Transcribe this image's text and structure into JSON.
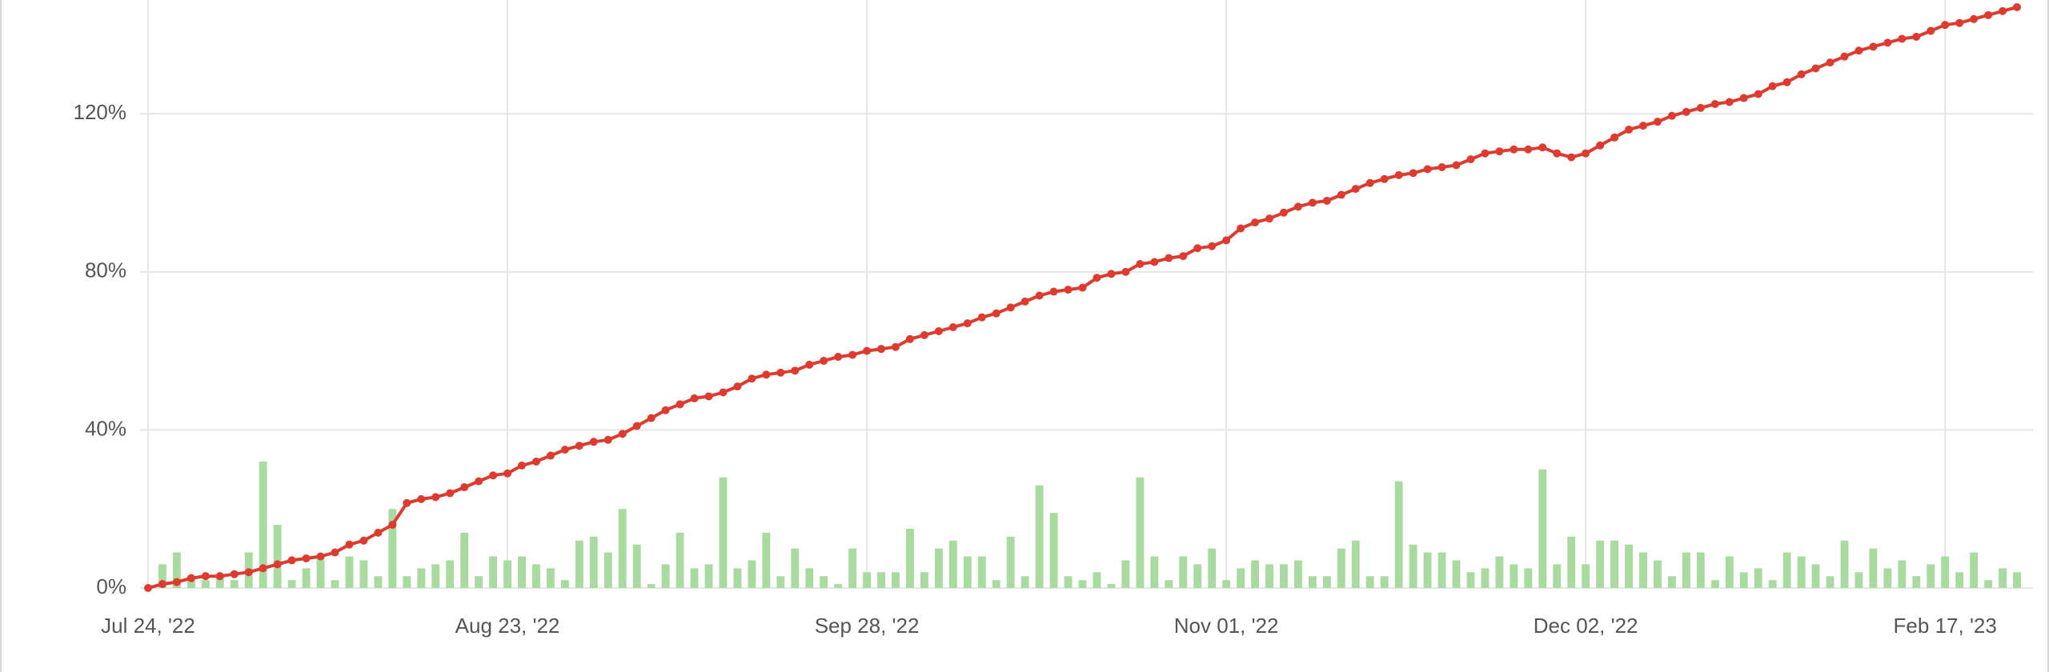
{
  "chart_data": {
    "type": "line",
    "categories": [
      "Jul 24, '22",
      null,
      null,
      null,
      null,
      null,
      null,
      null,
      null,
      null,
      null,
      null,
      null,
      null,
      null,
      null,
      null,
      null,
      null,
      null,
      null,
      null,
      null,
      null,
      null,
      "Aug 23, '22",
      null,
      null,
      null,
      null,
      null,
      null,
      null,
      null,
      null,
      null,
      null,
      null,
      null,
      null,
      null,
      null,
      null,
      null,
      null,
      null,
      null,
      null,
      null,
      null,
      "Sep 28, '22",
      null,
      null,
      null,
      null,
      null,
      null,
      null,
      null,
      null,
      null,
      null,
      null,
      null,
      null,
      null,
      null,
      null,
      null,
      null,
      null,
      null,
      null,
      null,
      null,
      "Nov 01, '22",
      null,
      null,
      null,
      null,
      null,
      null,
      null,
      null,
      null,
      null,
      null,
      null,
      null,
      null,
      null,
      null,
      null,
      null,
      null,
      null,
      null,
      null,
      null,
      null,
      "Dec 02, '22",
      null,
      null,
      null,
      null,
      null,
      null,
      null,
      null,
      null,
      null,
      null,
      null,
      null,
      null,
      null,
      null,
      null,
      null,
      null,
      null,
      null,
      null,
      null,
      null,
      "Feb 17, '23",
      null,
      null,
      null,
      null,
      null
    ],
    "ylim": [
      0,
      148
    ],
    "yticks": [
      {
        "value": 0,
        "label": "0%"
      },
      {
        "value": 40,
        "label": "40%"
      },
      {
        "value": 80,
        "label": "80%"
      },
      {
        "value": 120,
        "label": "120%"
      }
    ],
    "grid": true,
    "series": [
      {
        "type": "bar",
        "color": "#a9dba1",
        "values": [
          0,
          6,
          9,
          3,
          2,
          3,
          2,
          9,
          32,
          16,
          2,
          5,
          8,
          2,
          8,
          7,
          3,
          20,
          3,
          5,
          6,
          7,
          14,
          3,
          8,
          7,
          8,
          6,
          5,
          2,
          12,
          13,
          9,
          20,
          11,
          1,
          6,
          14,
          5,
          6,
          28,
          5,
          7,
          14,
          3,
          10,
          5,
          3,
          1,
          10,
          4,
          4,
          4,
          15,
          4,
          10,
          12,
          8,
          8,
          2,
          13,
          3,
          26,
          19,
          3,
          2,
          4,
          1,
          7,
          28,
          8,
          2,
          8,
          6,
          10,
          2,
          5,
          7,
          6,
          6,
          7,
          3,
          3,
          10,
          12,
          3,
          3,
          27,
          11,
          9,
          9,
          7,
          4,
          5,
          8,
          6,
          5,
          30,
          6,
          13,
          6,
          12,
          12,
          11,
          9,
          7,
          3,
          9,
          9,
          2,
          8,
          4,
          5,
          2,
          9,
          8,
          6,
          3,
          12,
          4,
          10,
          5,
          7,
          3,
          6,
          8,
          4,
          9,
          2,
          5,
          4
        ]
      },
      {
        "type": "line",
        "color": "#dd3b30",
        "values": [
          0,
          1,
          1.5,
          2.5,
          3,
          3,
          3.5,
          4,
          5,
          6,
          7,
          7.5,
          8,
          9,
          11,
          12,
          14,
          16,
          21.5,
          22.5,
          23,
          24,
          25.5,
          27,
          28.5,
          29,
          31,
          32,
          33.5,
          35,
          36,
          37,
          37.5,
          39,
          41,
          43,
          45,
          46.5,
          48,
          48.5,
          49.5,
          51,
          53,
          54,
          54.5,
          55,
          56.5,
          57.5,
          58.5,
          59,
          60,
          60.5,
          61,
          63,
          64,
          65,
          66,
          67,
          68.5,
          69.5,
          71,
          72.5,
          74,
          75,
          75.5,
          76,
          78.5,
          79.5,
          80,
          82,
          82.5,
          83.5,
          84,
          86,
          86.5,
          88,
          91,
          92.5,
          93.5,
          95,
          96.5,
          97.5,
          98,
          99.5,
          101,
          102.5,
          103.5,
          104.5,
          105,
          106,
          106.5,
          107,
          108.5,
          110,
          110.5,
          111,
          111,
          111.5,
          110,
          109,
          110,
          112,
          114,
          116,
          117,
          118,
          119.5,
          120.5,
          121.5,
          122.5,
          123,
          124,
          125,
          127,
          128,
          130,
          131.5,
          133,
          134.5,
          136,
          137,
          138,
          139,
          139.5,
          141,
          142.5,
          143,
          144,
          145,
          146,
          147
        ]
      }
    ]
  }
}
